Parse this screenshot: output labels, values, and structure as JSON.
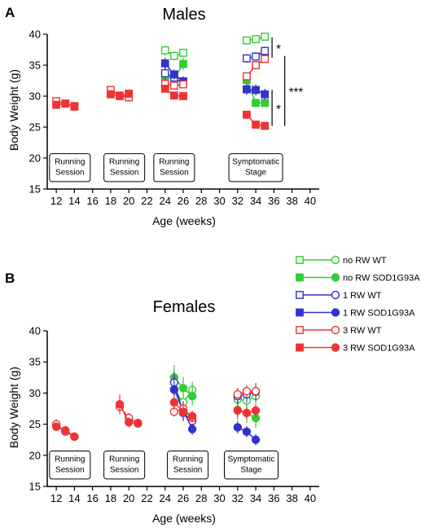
{
  "series_styles": [
    {
      "key": "noRW_WT",
      "color": "#33cc33",
      "filled": false
    },
    {
      "key": "noRW_SOD",
      "color": "#33cc33",
      "filled": true
    },
    {
      "key": "1RW_WT",
      "color": "#3333cc",
      "filled": false
    },
    {
      "key": "1RW_SOD",
      "color": "#3333cc",
      "filled": true
    },
    {
      "key": "3RW_WT",
      "color": "#ee3333",
      "filled": false
    },
    {
      "key": "3RW_SOD",
      "color": "#ee3333",
      "filled": true
    }
  ],
  "legend": {
    "entries": [
      "no RW  WT",
      "no RW SOD1G93A",
      "1 RW WT",
      "1 RW SOD1G93A",
      "3 RW  WT",
      "3 RW SOD1G93A"
    ]
  },
  "chart_data": [
    {
      "type": "scatter",
      "panel_label": "A",
      "title": "Males",
      "xlabel": "Age (weeks)",
      "ylabel": "Body Weight (g)",
      "xlim": [
        11,
        41
      ],
      "ylim": [
        15,
        40
      ],
      "xticks": [
        "12",
        "14",
        "16",
        "18",
        "20",
        "22",
        "24",
        "26",
        "28",
        "30",
        "32",
        "34",
        "36",
        "38",
        "40"
      ],
      "yticks": [
        "15",
        "20",
        "25",
        "30",
        "35",
        "40"
      ],
      "annotation_boxes": [
        {
          "lines": [
            "Running",
            "Session"
          ],
          "x": 13.5
        },
        {
          "lines": [
            "Running",
            "Session"
          ],
          "x": 19.5
        },
        {
          "lines": [
            "Running",
            "Session"
          ],
          "x": 25.0
        },
        {
          "lines": [
            "Symptomatic",
            "Stage"
          ],
          "x": 34.0
        }
      ],
      "significance": [
        {
          "label": "*",
          "y_range": [
            36.2,
            39.5
          ],
          "x": 35.8
        },
        {
          "label": "*",
          "y_range": [
            25.2,
            31.0
          ],
          "x": 35.8
        },
        {
          "label": "***",
          "y_range": [
            25.2,
            36.5
          ],
          "x": 37.2
        }
      ],
      "series": [
        {
          "name": "no RW  WT",
          "points": [
            [
              24,
              37.4,
              0.8
            ],
            [
              25,
              36.5,
              0.7
            ],
            [
              26,
              37.0,
              0.6
            ],
            [
              33,
              39.0,
              0.4
            ],
            [
              34,
              39.2,
              0.4
            ],
            [
              35,
              39.6,
              0.4
            ]
          ]
        },
        {
          "name": "no RW SOD1G93A",
          "points": [
            [
              24,
              33.2,
              1.0
            ],
            [
              25,
              32.8,
              0.9
            ],
            [
              26,
              35.2,
              1.0
            ],
            [
              33,
              32.6,
              0.6
            ],
            [
              34,
              28.9,
              0.6
            ],
            [
              35,
              28.9,
              0.6
            ]
          ]
        },
        {
          "name": "1 RW WT",
          "points": [
            [
              24,
              33.7,
              1.0
            ],
            [
              25,
              33.0,
              0.8
            ],
            [
              26,
              32.0,
              0.7
            ],
            [
              33,
              36.1,
              0.7
            ],
            [
              34,
              36.4,
              0.7
            ],
            [
              35,
              37.3,
              0.7
            ]
          ]
        },
        {
          "name": "1 RW SOD1G93A",
          "points": [
            [
              24,
              35.3,
              0.9
            ],
            [
              25,
              33.5,
              0.8
            ],
            [
              26,
              32.4,
              0.8
            ],
            [
              33,
              31.1,
              0.9
            ],
            [
              34,
              31.0,
              0.9
            ],
            [
              35,
              30.3,
              0.9
            ]
          ]
        },
        {
          "name": "3 RW  WT",
          "points": [
            [
              12,
              29.2,
              0.5
            ],
            [
              13,
              28.8,
              0.4
            ],
            [
              14,
              28.4,
              0.4
            ],
            [
              18,
              31.0,
              0.4
            ],
            [
              19,
              30.1,
              0.4
            ],
            [
              20,
              29.8,
              0.4
            ],
            [
              24,
              32.0,
              0.6
            ],
            [
              25,
              31.7,
              0.6
            ],
            [
              26,
              31.9,
              0.6
            ],
            [
              33,
              33.2,
              0.6
            ],
            [
              34,
              35.0,
              0.7
            ],
            [
              35,
              36.0,
              0.6
            ]
          ]
        },
        {
          "name": "3 RW SOD1G93A",
          "points": [
            [
              12,
              28.6,
              0.4
            ],
            [
              13,
              28.8,
              0.4
            ],
            [
              14,
              28.3,
              0.4
            ],
            [
              18,
              30.3,
              0.4
            ],
            [
              19,
              30.0,
              0.4
            ],
            [
              20,
              30.4,
              0.4
            ],
            [
              24,
              31.2,
              0.6
            ],
            [
              25,
              30.1,
              0.5
            ],
            [
              26,
              30.0,
              0.5
            ],
            [
              33,
              27.0,
              0.4
            ],
            [
              34,
              25.4,
              0.5
            ],
            [
              35,
              25.2,
              0.5
            ]
          ]
        }
      ]
    },
    {
      "type": "scatter",
      "panel_label": "B",
      "title": "Females",
      "xlabel": "Age (weeks)",
      "ylabel": "Body Weight (g)",
      "xlim": [
        11,
        41
      ],
      "ylim": [
        15,
        40
      ],
      "xticks": [
        "12",
        "14",
        "16",
        "18",
        "20",
        "22",
        "24",
        "26",
        "28",
        "30",
        "32",
        "34",
        "36",
        "38",
        "40"
      ],
      "yticks": [
        "15",
        "20",
        "25",
        "30",
        "35",
        "40"
      ],
      "annotation_boxes": [
        {
          "lines": [
            "Running",
            "Session"
          ],
          "x": 13.5
        },
        {
          "lines": [
            "Running",
            "Session"
          ],
          "x": 19.5
        },
        {
          "lines": [
            "Running",
            "Session"
          ],
          "x": 26.5
        },
        {
          "lines": [
            "Symptomatic",
            "Stage"
          ],
          "x": 33.5
        }
      ],
      "significance": [],
      "series": [
        {
          "name": "no RW  WT",
          "points": [
            [
              25,
              30.5,
              1.5
            ],
            [
              26,
              28.5,
              1.3
            ],
            [
              27,
              30.5,
              1.3
            ],
            [
              32,
              29.0,
              1.3
            ],
            [
              33,
              28.8,
              1.3
            ],
            [
              34,
              29.5,
              1.3
            ]
          ]
        },
        {
          "name": "no RW SOD1G93A",
          "points": [
            [
              25,
              32.5,
              2.0
            ],
            [
              26,
              30.8,
              1.8
            ],
            [
              27,
              29.5,
              1.5
            ],
            [
              32,
              27.3,
              1.6
            ],
            [
              33,
              26.8,
              1.6
            ],
            [
              34,
              26.0,
              1.6
            ]
          ]
        },
        {
          "name": "1 RW WT",
          "points": [
            [
              25,
              31.7,
              1.7
            ],
            [
              26,
              26.8,
              1.3
            ],
            [
              27,
              25.5,
              1.2
            ],
            [
              32,
              29.5,
              1.3
            ],
            [
              33,
              29.8,
              1.3
            ],
            [
              34,
              30.2,
              1.4
            ]
          ]
        },
        {
          "name": "1 RW SOD1G93A",
          "points": [
            [
              25,
              30.6,
              2.0
            ],
            [
              26,
              27.2,
              1.5
            ],
            [
              27,
              24.2,
              0.9
            ],
            [
              32,
              24.5,
              1.0
            ],
            [
              33,
              23.8,
              0.9
            ],
            [
              34,
              22.5,
              0.9
            ]
          ]
        },
        {
          "name": "3 RW  WT",
          "points": [
            [
              12,
              25.0,
              0.8
            ],
            [
              13,
              23.8,
              0.6
            ],
            [
              14,
              23.0,
              0.5
            ],
            [
              19,
              27.8,
              0.9
            ],
            [
              20,
              26.0,
              0.8
            ],
            [
              21,
              25.2,
              0.6
            ],
            [
              25,
              27.0,
              0.8
            ],
            [
              26,
              27.5,
              0.8
            ],
            [
              27,
              26.0,
              0.7
            ],
            [
              32,
              29.8,
              1.0
            ],
            [
              33,
              30.3,
              1.0
            ],
            [
              34,
              30.3,
              1.0
            ]
          ]
        },
        {
          "name": "3 RW SOD1G93A",
          "points": [
            [
              12,
              24.6,
              0.7
            ],
            [
              13,
              24.0,
              0.6
            ],
            [
              14,
              23.0,
              0.5
            ],
            [
              19,
              28.2,
              1.6
            ],
            [
              20,
              25.3,
              0.8
            ],
            [
              21,
              25.1,
              0.6
            ],
            [
              25,
              28.5,
              1.2
            ],
            [
              26,
              27.0,
              1.0
            ],
            [
              27,
              26.3,
              0.8
            ],
            [
              32,
              27.2,
              1.0
            ],
            [
              33,
              26.8,
              1.0
            ],
            [
              34,
              27.2,
              1.0
            ]
          ]
        }
      ]
    }
  ]
}
